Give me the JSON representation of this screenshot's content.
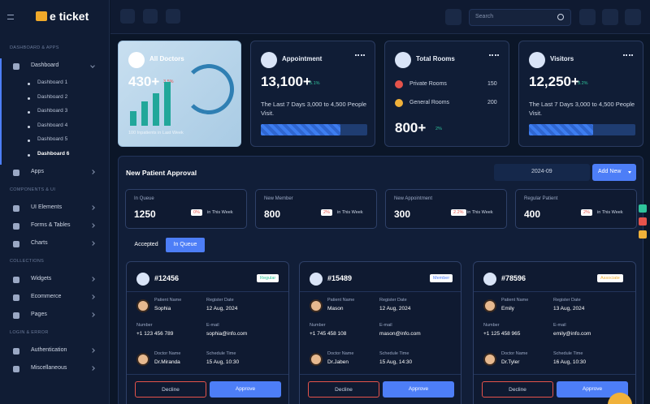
{
  "header": {
    "brand": "e ticket",
    "search_placeholder": "Search"
  },
  "sidebar": {
    "sections": [
      {
        "title": "DASHBOARD & APPS",
        "items": [
          {
            "label": "Dashboard",
            "children": [
              "Dashboard 1",
              "Dashboard 2",
              "Dashboard 3",
              "Dashboard 4",
              "Dashboard 5",
              "Dashboard 6"
            ]
          },
          {
            "label": "Apps"
          }
        ]
      },
      {
        "title": "COMPONENTS & UI",
        "items": [
          {
            "label": "UI Elements"
          },
          {
            "label": "Forms & Tables"
          },
          {
            "label": "Charts"
          }
        ]
      },
      {
        "title": "COLLECTIONS",
        "items": [
          {
            "label": "Widgets"
          },
          {
            "label": "Ecommerce"
          },
          {
            "label": "Pages"
          }
        ]
      },
      {
        "title": "LOGIN & ERROR",
        "items": [
          {
            "label": "Authentication"
          },
          {
            "label": "Miscellaneous"
          }
        ]
      }
    ]
  },
  "stats": [
    {
      "title": "All Doctors",
      "value": "430+",
      "change": "3.5%",
      "note": "100 Inpatients in Last Week"
    },
    {
      "title": "Appointment",
      "value": "13,100+",
      "change": "5.1%",
      "note": "The Last 7 Days 3,000 to 4,500 People Visit.",
      "progress": 75
    },
    {
      "title": "Total Rooms",
      "rooms": [
        {
          "label": "Private Rooms",
          "count": 150
        },
        {
          "label": "General Rooms",
          "count": 200
        }
      ],
      "value": "800+",
      "change": "2%"
    },
    {
      "title": "Visitors",
      "value": "12,250+",
      "change": "3.2%",
      "note": "The Last 7 Days 3,000 to 4,500 People Visit.",
      "progress": 60
    }
  ],
  "approval": {
    "title": "New Patient Approval",
    "date": "2024-09",
    "add_button": "Add New",
    "summary": [
      {
        "label": "In Queue",
        "value": "1250",
        "change": "0%",
        "period": "in This Week"
      },
      {
        "label": "New Member",
        "value": "800",
        "change": "2%",
        "period": "in This Week"
      },
      {
        "label": "New Appointment",
        "value": "300",
        "change": "2.2%",
        "period": "in This Week"
      },
      {
        "label": "Regular Patient",
        "value": "400",
        "change": "2%",
        "period": "in This Week"
      }
    ],
    "tabs": [
      "Accepted",
      "In Queue"
    ],
    "field_labels": {
      "patient_name": "Patient Name",
      "register_date": "Register Date",
      "number": "Number",
      "email": "E-mail",
      "doctor_name": "Doctor Name",
      "schedule_time": "Schedule Time"
    },
    "decline": "Decline",
    "approve": "Approve",
    "patients": [
      {
        "id": "#12456",
        "tag": "Regular",
        "patient_name": "Sophia",
        "register_date": "12 Aug, 2024",
        "number": "+1 123 456 789",
        "email": "sophia@info.com",
        "doctor_name": "Dr.Miranda",
        "schedule_time": "15 Aug, 10:30"
      },
      {
        "id": "#15489",
        "tag": "Member",
        "patient_name": "Mason",
        "register_date": "12 Aug, 2024",
        "number": "+1 745 458 108",
        "email": "mason@info.com",
        "doctor_name": "Dr.Jaben",
        "schedule_time": "15 Aug, 14:30"
      },
      {
        "id": "#78596",
        "tag": "Associate",
        "patient_name": "Emily",
        "register_date": "13 Aug, 2024",
        "number": "+1 125 458 965",
        "email": "emily@info.com",
        "doctor_name": "Dr.Tyler",
        "schedule_time": "16 Aug, 10:30"
      }
    ]
  }
}
